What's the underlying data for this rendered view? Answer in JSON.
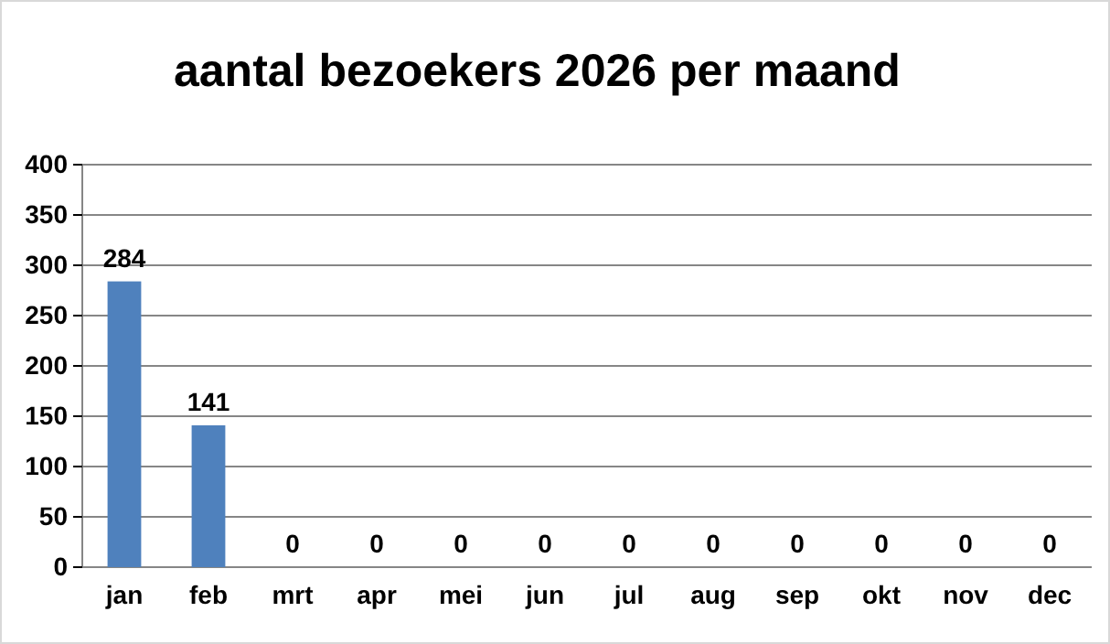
{
  "chart_data": {
    "type": "bar",
    "title": "aantal bezoekers 2026 per maand",
    "categories": [
      "jan",
      "feb",
      "mrt",
      "apr",
      "mei",
      "jun",
      "jul",
      "aug",
      "sep",
      "okt",
      "nov",
      "dec"
    ],
    "values": [
      284,
      141,
      0,
      0,
      0,
      0,
      0,
      0,
      0,
      0,
      0,
      0
    ],
    "color": "#4f81bd",
    "ylim": [
      0,
      400
    ],
    "yticks": [
      0,
      50,
      100,
      150,
      200,
      250,
      300,
      350,
      400
    ],
    "grid": "y",
    "data_labels": true
  }
}
